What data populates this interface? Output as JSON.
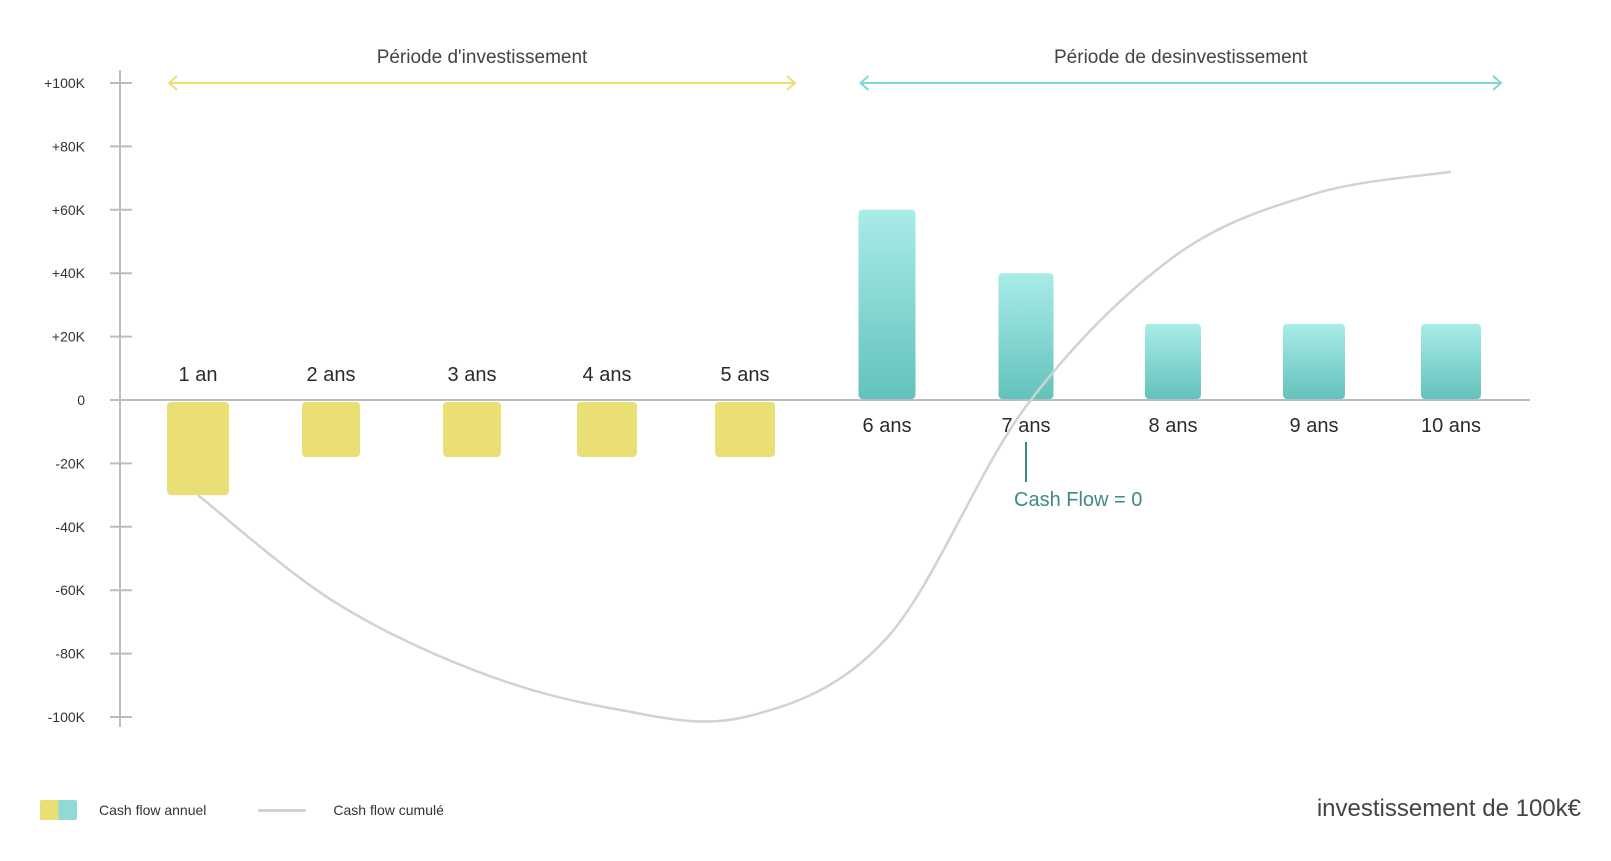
{
  "chart_data": {
    "type": "bar",
    "categories": [
      "1 an",
      "2 ans",
      "3 ans",
      "4 ans",
      "5 ans",
      "6 ans",
      "7 ans",
      "8 ans",
      "9 ans",
      "10 ans"
    ],
    "series": [
      {
        "name": "Cash flow annuel",
        "values": [
          -30,
          -18,
          -18,
          -18,
          -18,
          60,
          40,
          24,
          24,
          24
        ]
      },
      {
        "name": "Cash flow cumulé",
        "values": [
          -30,
          -63,
          -85,
          -97,
          -100,
          -75,
          -2,
          45,
          65,
          72
        ]
      }
    ],
    "ylim": [
      -100,
      100
    ],
    "yticks": [
      "+100K",
      "+80K",
      "+60K",
      "+40K",
      "+20K",
      "0",
      "-20K",
      "-40K",
      "-60K",
      "-80K",
      "-100K"
    ],
    "ytick_values": [
      100,
      80,
      60,
      40,
      20,
      0,
      -20,
      -40,
      -60,
      -80,
      -100
    ],
    "periods": [
      {
        "label": "Période d'investissement",
        "from": "1 an",
        "to": "5 ans",
        "color": "#e9df74"
      },
      {
        "label": "Période de desinvestissement",
        "from": "6 ans",
        "to": "10 ans",
        "color": "#7fd6d3"
      }
    ],
    "annotation": {
      "label": "Cash Flow = 0",
      "category": "7 ans"
    },
    "colors": {
      "invest": "#e9df74",
      "divest_top": "#a9ece8",
      "divest_bottom": "#63c2bc",
      "cumulative": "#cfd3d3",
      "axis": "#b9bfbf",
      "annotation": "#3e8a86"
    }
  },
  "legend": {
    "annual_label": "Cash flow annuel",
    "cumulative_label": "Cash flow cumulé"
  },
  "footer": {
    "note": "investissement de 100k€"
  }
}
